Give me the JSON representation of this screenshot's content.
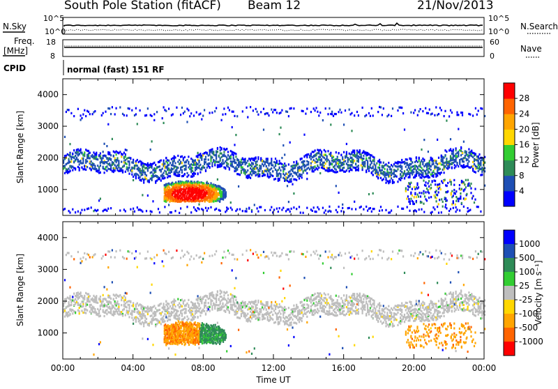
{
  "header": {
    "station": "South Pole Station (fitACF)",
    "beam": "Beam 12",
    "date": "21/Nov/2013"
  },
  "strip_labels": {
    "nsky": "N.Sky",
    "nsky_top": "10^5",
    "nsky_bottom": "10^0",
    "nsearch": "N.Search",
    "nsearch_top": "10^5",
    "nsearch_bottom": "10^0",
    "freq_label_1": "Freq.",
    "freq_label_2": "[MHz]",
    "freq_top": "18",
    "freq_bottom": "8",
    "nave": "Nave",
    "nave_top": "60",
    "nave_bottom": "0",
    "cpid": "CPID",
    "cpid_value": "normal (fast) 151 RF"
  },
  "colors": {
    "ground_scatter": "#bebebe",
    "power_scale": [
      "#0000ff",
      "#1e4fb4",
      "#2e8b57",
      "#32cd32",
      "#ffd700",
      "#ffa500",
      "#ff6400",
      "#ff0000"
    ],
    "velocity_scale": [
      "#ff0000",
      "#ff6400",
      "#ffa500",
      "#ffd700",
      "#bebebe",
      "#32cd32",
      "#2e8b57",
      "#1e4fb4",
      "#0000ff"
    ]
  },
  "chart_data": [
    {
      "type": "heatmap",
      "name": "power",
      "xlabel": "",
      "ylabel": "Slant Range [km]",
      "xlim": [
        "00:00",
        "00:00"
      ],
      "ylim": [
        180,
        4500
      ],
      "yticks": [
        "1000",
        "2000",
        "3000",
        "4000"
      ],
      "colorbar": {
        "label": "Power [dB]",
        "ticks": [
          "4",
          "8",
          "12",
          "16",
          "20",
          "24",
          "28"
        ],
        "range": [
          0,
          30
        ]
      },
      "regions": [
        {
          "x_start": "00:00",
          "x_end": "24:00",
          "y_range": [
            1400,
            2200
          ],
          "value_db": 6
        },
        {
          "x_start": "05:45",
          "x_end": "09:30",
          "y_range": [
            600,
            1200
          ],
          "value_db": 28
        },
        {
          "x_start": "00:00",
          "x_end": "24:00",
          "y_range": [
            3300,
            3600
          ],
          "value_db": 4
        }
      ]
    },
    {
      "type": "heatmap",
      "name": "velocity",
      "xlabel": "Time UT",
      "ylabel": "Slant Range [km]",
      "xticks": [
        "00:00",
        "04:00",
        "08:00",
        "12:00",
        "16:00",
        "20:00",
        "00:00"
      ],
      "ylim": [
        180,
        4500
      ],
      "yticks": [
        "1000",
        "2000",
        "3000",
        "4000"
      ],
      "colorbar": {
        "label": "Velocity [m s⁻¹]",
        "ticks": [
          "1000",
          "500",
          "100",
          "25",
          "-25",
          "-100",
          "-500",
          "-1000"
        ]
      },
      "regions": [
        {
          "x_start": "00:00",
          "x_end": "24:00",
          "y_range": [
            1400,
            2200
          ],
          "value": "ground scatter"
        },
        {
          "x_start": "05:45",
          "x_end": "07:45",
          "y_range": [
            600,
            1400
          ],
          "value_mps": -100
        },
        {
          "x_start": "07:45",
          "x_end": "10:00",
          "y_range": [
            600,
            1400
          ],
          "value_mps": 500
        },
        {
          "x_start": "19:30",
          "x_end": "23:30",
          "y_range": [
            500,
            1300
          ],
          "value_mps": -100
        }
      ]
    }
  ]
}
